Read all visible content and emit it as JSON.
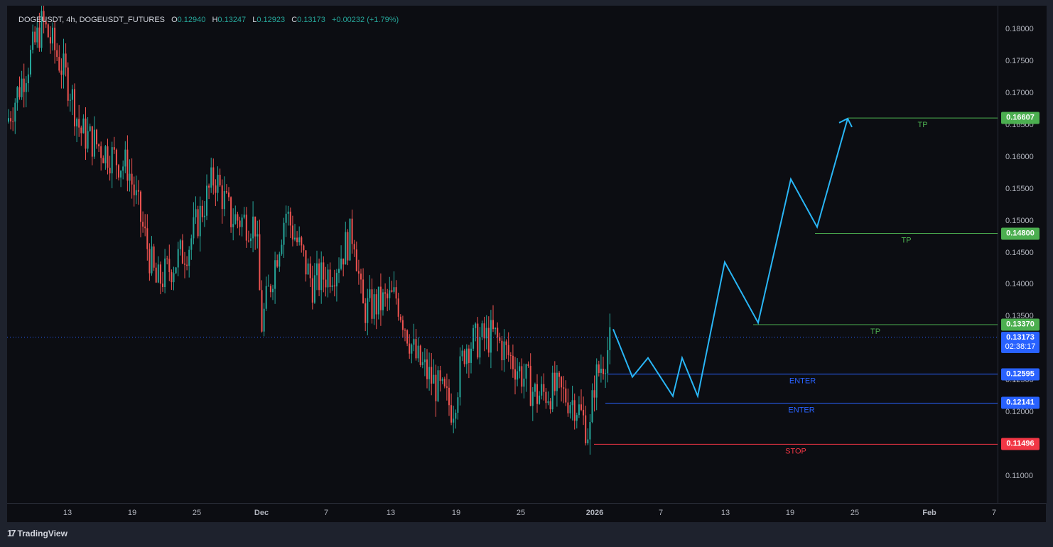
{
  "legend": {
    "symbol": "DOGE",
    "symbol_suffix": "USDT, 4h, DOGEUSDT_FUTURES",
    "o_key": "O",
    "o": "0.12940",
    "h_key": "H",
    "h": "0.13247",
    "l_key": "L",
    "l": "0.12923",
    "c_key": "C",
    "c": "0.13173",
    "change": "+0.00232 (+1.79%)"
  },
  "price_axis": {
    "ticks": [
      "0.18000",
      "0.17500",
      "0.17000",
      "0.16500",
      "0.16000",
      "0.15500",
      "0.15000",
      "0.14500",
      "0.14000",
      "0.13500",
      "0.13000",
      "0.12500",
      "0.12000",
      "0.11500",
      "0.11000"
    ],
    "values": [
      0.18,
      0.175,
      0.17,
      0.165,
      0.16,
      0.155,
      0.15,
      0.145,
      0.14,
      0.135,
      0.13,
      0.125,
      0.12,
      0.115,
      0.11
    ]
  },
  "time_axis": {
    "labels": [
      "13",
      "19",
      "25",
      "Dec",
      "7",
      "13",
      "19",
      "25",
      "2026",
      "7",
      "13",
      "19",
      "25",
      "Feb",
      "7"
    ]
  },
  "current_price": {
    "value": "0.13173",
    "countdown": "02:38:17",
    "color": "#2962ff"
  },
  "levels": [
    {
      "label": "TP",
      "price": "0.16607",
      "color": "#4caf50"
    },
    {
      "label": "TP",
      "price": "0.14800",
      "color": "#4caf50"
    },
    {
      "label": "TP",
      "price": "0.13370",
      "color": "#4caf50"
    },
    {
      "label": "ENTER",
      "price": "0.12595",
      "color": "#2962ff"
    },
    {
      "label": "ENTER",
      "price": "0.12141",
      "color": "#2962ff"
    },
    {
      "label": "STOP",
      "price": "0.11496",
      "color": "#f23645"
    }
  ],
  "colors": {
    "up": "#26a69a",
    "down": "#ef5350",
    "projection": "#29b6f6",
    "background": "#0c0d12"
  },
  "brand": {
    "name": "TradingView",
    "icon": "tradingview-logo-icon"
  },
  "chart_data": {
    "type": "candlestick",
    "symbol": "DOGEUSDT_FUTURES",
    "interval": "4h",
    "ylim": [
      0.105,
      0.1835
    ],
    "x_ticks": [
      "13",
      "19",
      "25",
      "Dec",
      "7",
      "13",
      "19",
      "25",
      "2026",
      "7",
      "13",
      "19",
      "25",
      "Feb",
      "7"
    ],
    "approx_path": [
      [
        "start",
        0.1655
      ],
      [
        "Nov 8",
        0.181
      ],
      [
        "Nov 10",
        0.176
      ],
      [
        "Nov 13",
        0.171
      ],
      [
        "Nov 15",
        0.164
      ],
      [
        "Nov 19",
        0.159
      ],
      [
        "Nov 21",
        0.1585
      ],
      [
        "Nov 23",
        0.14
      ],
      [
        "Nov 25",
        0.146
      ],
      [
        "Nov 27",
        0.157
      ],
      [
        "Nov 29",
        0.1505
      ],
      [
        "Dec 1",
        0.1495
      ],
      [
        "Dec 2",
        0.1335
      ],
      [
        "Dec 4",
        0.1515
      ],
      [
        "Dec 6",
        0.14
      ],
      [
        "Dec 9",
        0.1425
      ],
      [
        "Dec 11",
        0.1485
      ],
      [
        "Dec 13",
        0.136
      ],
      [
        "Dec 15",
        0.138
      ],
      [
        "Dec 17",
        0.1285
      ],
      [
        "Dec 19",
        0.1205
      ],
      [
        "Dec 21",
        0.1305
      ],
      [
        "Dec 23",
        0.132
      ],
      [
        "Dec 25",
        0.1275
      ],
      [
        "Dec 27",
        0.1225
      ],
      [
        "Dec 29",
        0.1235
      ],
      [
        "Dec 31",
        0.1215
      ],
      [
        "Jan 1",
        0.1165
      ],
      [
        "Jan 2",
        0.1245
      ],
      [
        "Jan 3",
        0.13173
      ]
    ],
    "projection_path": [
      0.133,
      0.1255,
      0.1285,
      0.1225,
      0.1285,
      0.1225,
      0.1435,
      0.134,
      0.1565,
      0.149,
      0.166
    ],
    "levels": [
      {
        "name": "TP",
        "value": 0.16607
      },
      {
        "name": "TP",
        "value": 0.148
      },
      {
        "name": "TP",
        "value": 0.1337
      },
      {
        "name": "ENTER",
        "value": 0.12595
      },
      {
        "name": "ENTER",
        "value": 0.12141
      },
      {
        "name": "STOP",
        "value": 0.11496
      }
    ],
    "last_price": 0.13173
  }
}
